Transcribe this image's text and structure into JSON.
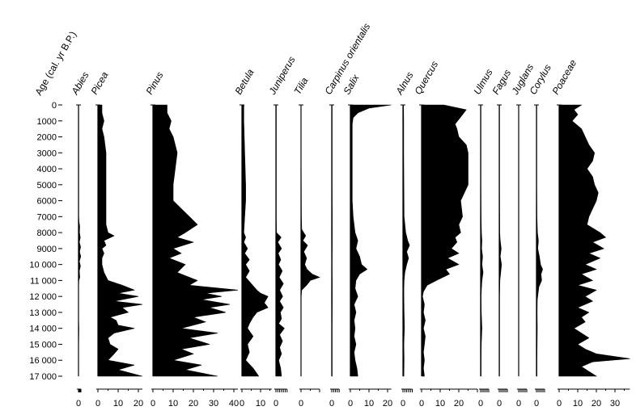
{
  "chart_data": {
    "type": "area",
    "title": "",
    "ylabel": "Age (cal. yr B.P.)",
    "xlabel": "",
    "ylim": [
      0,
      17000
    ],
    "age_ticks": [
      "0",
      "1000",
      "2000",
      "3000",
      "4000",
      "5000",
      "6000",
      "7000",
      "8000",
      "9000",
      "10 000",
      "11 000",
      "12 000",
      "13 000",
      "14 000",
      "15 000",
      "16 000",
      "17 000"
    ],
    "age_values": [
      0,
      1000,
      2000,
      3000,
      4000,
      5000,
      6000,
      7000,
      8000,
      9000,
      10000,
      11000,
      12000,
      13000,
      14000,
      15000,
      16000,
      17000
    ],
    "series": [
      {
        "name": "Abies",
        "xlim": [
          0,
          3
        ],
        "x_ticks": [
          {
            "v": 0,
            "label": "0"
          }
        ],
        "ages": [
          0,
          1000,
          3000,
          6000,
          7000,
          7300,
          7600,
          8000,
          8300,
          8600,
          8900,
          9200,
          9500,
          9800,
          10100,
          10400,
          10800,
          11000,
          11300,
          12000,
          13500,
          14000,
          15000,
          16000,
          17000
        ],
        "values": [
          0.3,
          0.3,
          0.3,
          0.3,
          0.3,
          0.6,
          1.5,
          1.2,
          2.2,
          1.0,
          2.6,
          1.3,
          2.8,
          1.0,
          2.4,
          1.0,
          1.6,
          0.4,
          0.2,
          0.2,
          0.2,
          0.5,
          0.2,
          0.2,
          0.2
        ]
      },
      {
        "name": "Picea",
        "xlim": [
          0,
          22
        ],
        "x_ticks": [
          {
            "v": 0,
            "label": "0"
          },
          {
            "v": 10,
            "label": "10"
          },
          {
            "v": 20,
            "label": "20"
          }
        ],
        "ages": [
          0,
          500,
          1000,
          1500,
          2000,
          3000,
          4000,
          5000,
          6000,
          7000,
          7500,
          8000,
          8200,
          8500,
          8800,
          9000,
          9300,
          9600,
          10000,
          10500,
          11000,
          11300,
          11600,
          11800,
          12000,
          12300,
          12500,
          12700,
          13000,
          13300,
          13500,
          13800,
          14000,
          14300,
          14600,
          15000,
          15300,
          15600,
          16000,
          16300,
          16600,
          17000
        ],
        "values": [
          2,
          2,
          3,
          2,
          3,
          4,
          4,
          4,
          4,
          4,
          4,
          5,
          8,
          3,
          4,
          2,
          3,
          2,
          2,
          3,
          5,
          12,
          18,
          10,
          20,
          8,
          22,
          12,
          15,
          6,
          9,
          10,
          18,
          8,
          5,
          6,
          10,
          8,
          5,
          18,
          10,
          22
        ]
      },
      {
        "name": "Pinus",
        "xlim": [
          0,
          42
        ],
        "x_ticks": [
          {
            "v": 0,
            "label": "0"
          },
          {
            "v": 10,
            "label": "10"
          },
          {
            "v": 20,
            "label": "20"
          },
          {
            "v": 30,
            "label": "30"
          },
          {
            "v": 40,
            "label": "40"
          }
        ],
        "ages": [
          0,
          500,
          1000,
          1500,
          2000,
          3000,
          4000,
          5000,
          6000,
          6500,
          7000,
          7500,
          8000,
          8300,
          8600,
          9000,
          9300,
          9600,
          10000,
          10500,
          11000,
          11300,
          11600,
          11800,
          12000,
          12200,
          12500,
          12700,
          13000,
          13300,
          13600,
          14000,
          14300,
          14600,
          15000,
          15300,
          15600,
          16000,
          16300,
          16600,
          17000
        ],
        "values": [
          7,
          7,
          9,
          8,
          10,
          12,
          11,
          10,
          10,
          14,
          18,
          22,
          16,
          12,
          20,
          10,
          14,
          8,
          16,
          12,
          22,
          18,
          42,
          26,
          34,
          24,
          38,
          28,
          36,
          20,
          26,
          14,
          32,
          18,
          28,
          14,
          20,
          10,
          24,
          16,
          32
        ]
      },
      {
        "name": "Betula",
        "xlim": [
          0,
          16
        ],
        "x_ticks": [
          {
            "v": 0,
            "label": "0"
          },
          {
            "v": 10,
            "label": "10"
          }
        ],
        "ages": [
          0,
          1000,
          3000,
          5000,
          6000,
          7000,
          8000,
          8300,
          8600,
          9000,
          9300,
          9700,
          10000,
          10400,
          10800,
          11200,
          11600,
          11800,
          12000,
          12400,
          12700,
          13000,
          13300,
          13700,
          14000,
          14500,
          15000,
          15500,
          16000,
          16500,
          17000
        ],
        "values": [
          1,
          1,
          1.5,
          2,
          2,
          1.5,
          1,
          2,
          1,
          3,
          1.5,
          4,
          2,
          4,
          2,
          5,
          8,
          10,
          14,
          12,
          14,
          8,
          6,
          4,
          3,
          6,
          3,
          4,
          2,
          6,
          9
        ]
      },
      {
        "name": "Juniperus",
        "xlim": [
          0,
          6
        ],
        "x_ticks": [
          {
            "v": 0,
            "label": "0"
          }
        ],
        "ages": [
          0,
          1000,
          3000,
          7000,
          8000,
          8300,
          8600,
          9000,
          9300,
          9700,
          10000,
          10400,
          10800,
          11200,
          11600,
          12000,
          12300,
          12700,
          13000,
          13400,
          13700,
          14000,
          14400,
          14800,
          15200,
          15600,
          16000,
          16500,
          17000
        ],
        "values": [
          0.2,
          0.2,
          0.2,
          0.2,
          0.3,
          2.8,
          1,
          3,
          1.2,
          2.6,
          1.4,
          3.4,
          1.8,
          4,
          2,
          3.6,
          2,
          4,
          2.4,
          3,
          1.5,
          4.5,
          2,
          3.5,
          2,
          3,
          1.5,
          2.5,
          3
        ]
      },
      {
        "name": "Tilia",
        "xlim": [
          0,
          10
        ],
        "x_ticks": [
          {
            "v": 0,
            "label": "0"
          }
        ],
        "ages": [
          0,
          1000,
          4000,
          7000,
          7800,
          8200,
          8500,
          8800,
          9200,
          9600,
          10000,
          10300,
          10600,
          10800,
          11000,
          11300,
          11600,
          12000,
          14000,
          17000
        ],
        "values": [
          0.1,
          0.1,
          0.1,
          0.2,
          0.4,
          2.5,
          1,
          3.5,
          1.5,
          3,
          2,
          3.2,
          6,
          10,
          5,
          3,
          0.4,
          0.1,
          0.1,
          0.1
        ]
      },
      {
        "name": "Carpinus orientalis",
        "xlim": [
          0,
          4
        ],
        "x_ticks": [
          {
            "v": 0,
            "label": "0"
          }
        ],
        "ages": [
          0,
          2000,
          5000,
          8000,
          10000,
          12000,
          14000,
          17000
        ],
        "values": [
          0.2,
          0.2,
          0.2,
          0.3,
          0.2,
          0.3,
          0.2,
          0.2
        ]
      },
      {
        "name": "Salix",
        "xlim": [
          0,
          22
        ],
        "x_ticks": [
          {
            "v": 0,
            "label": "0"
          },
          {
            "v": 10,
            "label": "10"
          },
          {
            "v": 20,
            "label": "20"
          }
        ],
        "ages": [
          0,
          200,
          500,
          800,
          1200,
          2000,
          4000,
          6000,
          7000,
          8000,
          8500,
          9000,
          9500,
          10000,
          10300,
          10600,
          11000,
          11500,
          12000,
          12500,
          13000,
          13500,
          14000,
          14500,
          15000,
          15500,
          16000,
          16500,
          17000
        ],
        "values": [
          22,
          10,
          4,
          1.5,
          1,
          1,
          1,
          1,
          1.5,
          2.5,
          4,
          3,
          5,
          6,
          9,
          5,
          3,
          2.5,
          4,
          2,
          3,
          2,
          2.5,
          2,
          3,
          2,
          2.5,
          3.5,
          4
        ]
      },
      {
        "name": "Alnus",
        "xlim": [
          0,
          5
        ],
        "x_ticks": [
          {
            "v": 0,
            "label": "0"
          }
        ],
        "ages": [
          0,
          1000,
          3000,
          5000,
          7000,
          8000,
          8500,
          8800,
          9200,
          9600,
          10000,
          10500,
          11000,
          11500,
          12000,
          13000,
          14000,
          15000,
          16000,
          17000
        ],
        "values": [
          0.3,
          0.4,
          0.4,
          0.5,
          0.6,
          1.5,
          2.5,
          3.5,
          2,
          3,
          2,
          1,
          0.6,
          0.5,
          0.5,
          0.6,
          0.8,
          0.5,
          0.6,
          0.5
        ]
      },
      {
        "name": "Quercus",
        "xlim": [
          0,
          30
        ],
        "x_ticks": [
          {
            "v": 0,
            "label": "0"
          },
          {
            "v": 10,
            "label": "10"
          },
          {
            "v": 20,
            "label": "20"
          }
        ],
        "ages": [
          0,
          300,
          600,
          900,
          1200,
          1500,
          2000,
          2500,
          3000,
          4000,
          5000,
          6000,
          7000,
          7500,
          8000,
          8300,
          8600,
          9000,
          9300,
          9600,
          10000,
          10300,
          10600,
          11000,
          11300,
          11700,
          12000,
          12500,
          13000,
          13500,
          14000,
          14500,
          15000,
          15500,
          16000,
          16500,
          17000
        ],
        "values": [
          12,
          24,
          22,
          20,
          18,
          19,
          20,
          24,
          25,
          25,
          25,
          21,
          22,
          20,
          21,
          18,
          19,
          16,
          20,
          14,
          20,
          13,
          15,
          8,
          3,
          1,
          0.5,
          1.5,
          1,
          2,
          1,
          2,
          1.5,
          1,
          1.5,
          1,
          1.5
        ]
      },
      {
        "name": "Ulmus",
        "xlim": [
          0,
          5
        ],
        "x_ticks": [
          {
            "v": 0,
            "label": "0"
          }
        ],
        "ages": [
          0,
          2000,
          5000,
          7000,
          8000,
          8500,
          9000,
          9500,
          10000,
          10500,
          11000,
          11500,
          12000,
          13000,
          14000,
          15000,
          16000,
          17000
        ],
        "values": [
          0.2,
          0.2,
          0.2,
          0.3,
          0.5,
          0.8,
          0.6,
          1.2,
          0.8,
          1.5,
          0.8,
          0.5,
          0.3,
          0.4,
          0.8,
          0.4,
          0.3,
          0.3
        ]
      },
      {
        "name": "Fagus",
        "xlim": [
          0,
          5
        ],
        "x_ticks": [
          {
            "v": 0,
            "label": "0"
          }
        ],
        "ages": [
          0,
          2000,
          5000,
          8000,
          8500,
          9000,
          9500,
          10000,
          11000,
          12000,
          14000,
          17000
        ],
        "values": [
          0.2,
          0.2,
          0.2,
          0.3,
          0.6,
          1.2,
          0.6,
          1.4,
          0.4,
          0.2,
          0.2,
          0.2
        ]
      },
      {
        "name": "Juglans",
        "xlim": [
          0,
          5
        ],
        "x_ticks": [
          {
            "v": 0,
            "label": "0"
          }
        ],
        "ages": [
          0,
          17000
        ],
        "values": [
          0.1,
          0.1
        ]
      },
      {
        "name": "Corylus",
        "xlim": [
          0,
          5
        ],
        "x_ticks": [
          {
            "v": 0,
            "label": "0"
          }
        ],
        "ages": [
          0,
          2000,
          5000,
          7000,
          8000,
          8500,
          9000,
          9500,
          10000,
          10300,
          10600,
          11000,
          11400,
          11800,
          12200,
          13000,
          14000,
          15000,
          16000,
          17000
        ],
        "values": [
          0.2,
          0.2,
          0.2,
          0.3,
          0.6,
          1.2,
          0.8,
          1.8,
          2.5,
          3.8,
          2.8,
          3.2,
          1.5,
          1,
          0.5,
          0.4,
          0.5,
          0.4,
          0.3,
          0.3
        ]
      },
      {
        "name": "Poaceae",
        "xlim": [
          0,
          38
        ],
        "x_ticks": [
          {
            "v": 0,
            "label": "0"
          },
          {
            "v": 10,
            "label": "10"
          },
          {
            "v": 20,
            "label": "20"
          },
          {
            "v": 30,
            "label": "30"
          }
        ],
        "ages": [
          0,
          300,
          600,
          1000,
          1500,
          2000,
          2500,
          3000,
          3500,
          4000,
          4500,
          5000,
          5500,
          6000,
          6500,
          7000,
          7500,
          8000,
          8300,
          8600,
          9000,
          9300,
          9600,
          10000,
          10300,
          10600,
          11000,
          11300,
          11600,
          12000,
          12300,
          12700,
          13000,
          13300,
          13600,
          14000,
          14300,
          14600,
          15000,
          15300,
          15600,
          15900,
          16100,
          16400,
          16700,
          17000
        ],
        "values": [
          12,
          8,
          10,
          7,
          12,
          14,
          16,
          19,
          18,
          15,
          18,
          19,
          21,
          20,
          18,
          16,
          15,
          22,
          25,
          18,
          24,
          16,
          22,
          14,
          20,
          12,
          18,
          10,
          20,
          14,
          18,
          10,
          16,
          12,
          14,
          8,
          12,
          16,
          10,
          14,
          20,
          38,
          18,
          12,
          16,
          20
        ]
      }
    ]
  }
}
